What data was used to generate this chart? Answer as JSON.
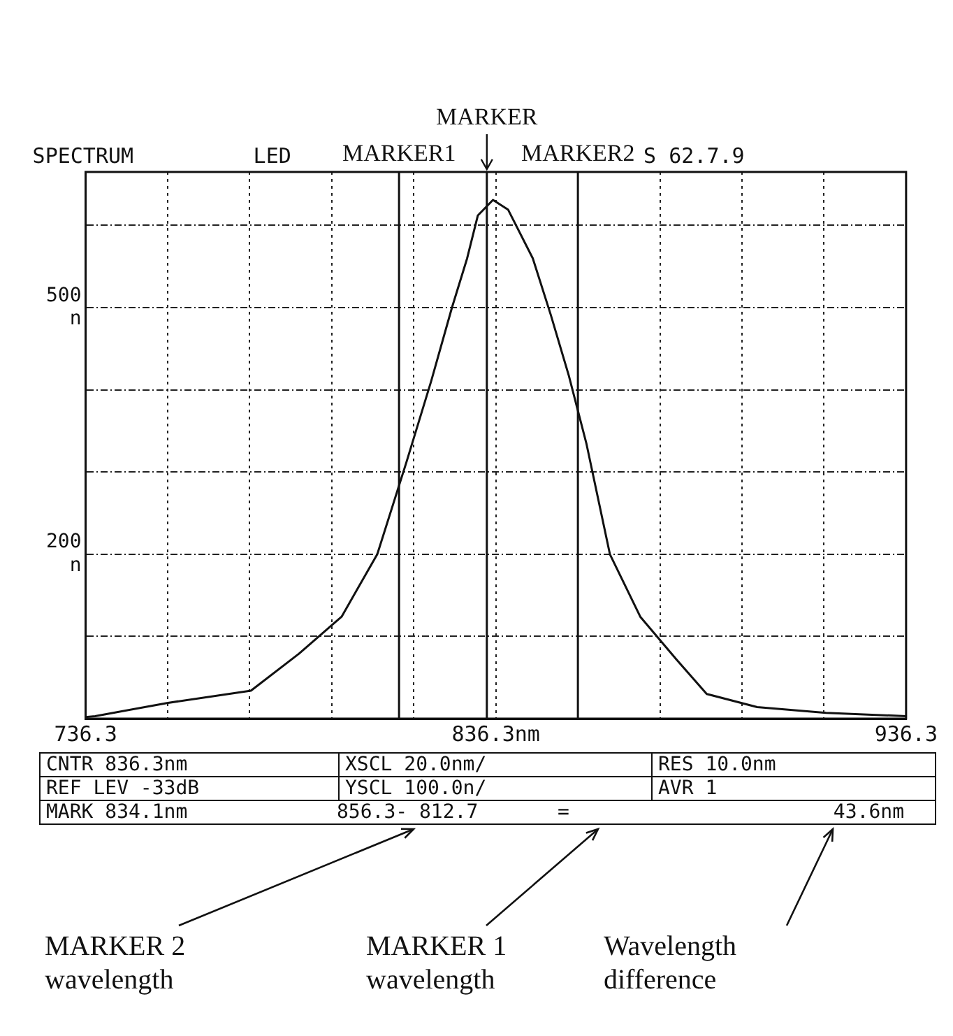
{
  "chart_data": {
    "type": "line",
    "title": "SPECTRUM",
    "subtitle": "LED",
    "x": [
      736.3,
      738.6,
      756.1,
      776.6,
      788.3,
      798.7,
      807.4,
      814.5,
      820.5,
      825.6,
      829.3,
      831.9,
      835.6,
      839.3,
      845.3,
      849.7,
      854.1,
      858.4,
      864.1,
      871.5,
      880.3,
      887.7,
      900,
      916.8,
      936.3
    ],
    "series": [
      {
        "color": "#111111",
        "values": [
          2,
          3,
          19,
          34,
          79,
          124,
          200,
          312,
          410,
          500,
          560,
          612,
          631,
          619,
          560,
          491,
          417,
          334,
          200,
          124,
          72,
          30,
          14,
          7,
          3
        ]
      }
    ],
    "xlim": [
      736.3,
      936.3
    ],
    "xticks": [
      {
        "value": 736.3,
        "label": "736.3"
      },
      {
        "value": 756.3,
        "label": null
      },
      {
        "value": 776.3,
        "label": null
      },
      {
        "value": 796.3,
        "label": null
      },
      {
        "value": 816.3,
        "label": null
      },
      {
        "value": 836.3,
        "label": "836.3nm"
      },
      {
        "value": 856.3,
        "label": null
      },
      {
        "value": 876.3,
        "label": null
      },
      {
        "value": 896.3,
        "label": null
      },
      {
        "value": 916.3,
        "label": null
      },
      {
        "value": 936.3,
        "label": "936.3"
      }
    ],
    "ylim": [
      0,
      665
    ],
    "yticks": [
      {
        "value": 0,
        "label": null
      },
      {
        "value": 100,
        "label": null
      },
      {
        "value": 200,
        "label": "200 n"
      },
      {
        "value": 300,
        "label": null
      },
      {
        "value": 400,
        "label": null
      },
      {
        "value": 500,
        "label": "500 n"
      },
      {
        "value": 600,
        "label": null
      }
    ],
    "grid": true,
    "ref_lines": [
      {
        "axis": "x",
        "value": 812.7,
        "label": "MARKER1",
        "color": "#111111"
      },
      {
        "axis": "x",
        "value": 834.1,
        "label": "MARKER",
        "color": "#111111"
      },
      {
        "axis": "x",
        "value": 856.3,
        "label": "MARKER2",
        "color": "#111111"
      }
    ],
    "annotations": [
      "S 62.7.9",
      "CNTR 836.3nm",
      "XSCL 20.0nm/",
      "RES 10.0nm",
      "REF LEV -33dB",
      "YSCL 100.0n/",
      "AVR 1",
      "MARK 834.1nm",
      "856.3- 812.7",
      "=",
      "43.6nm",
      "MARKER 2 wavelength",
      "MARKER 1 wavelength",
      "Wavelength difference"
    ]
  }
}
